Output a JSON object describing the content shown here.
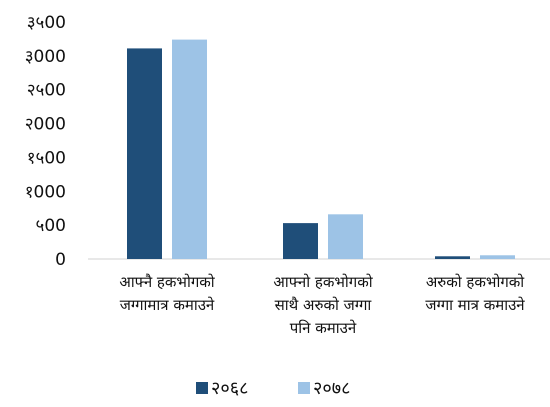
{
  "chart_data": {
    "type": "bar",
    "categories": [
      [
        "आफ्नै हकभोगको",
        "जग्गामात्र कमाउने"
      ],
      [
        "आफ्नो हकभोगको",
        "साथै अरुको जग्गा",
        "पनि कमाउने"
      ],
      [
        "अरुको हकभोगको",
        "जग्गा मात्र कमाउने"
      ]
    ],
    "series": [
      {
        "name": "२०६८",
        "values": [
          3110,
          530,
          40
        ],
        "color": "#1f4e79"
      },
      {
        "name": "२०७८",
        "values": [
          3240,
          660,
          55
        ],
        "color": "#9dc3e6"
      }
    ],
    "ylim": [
      0,
      3500
    ],
    "yticks": [
      {
        "value": 0,
        "label": "0"
      },
      {
        "value": 500,
        "label": "५00"
      },
      {
        "value": 1000,
        "label": "१000"
      },
      {
        "value": 1500,
        "label": "१५00"
      },
      {
        "value": 2000,
        "label": "२000"
      },
      {
        "value": 2500,
        "label": "२५00"
      },
      {
        "value": 3000,
        "label": "३000"
      },
      {
        "value": 3500,
        "label": "३५00"
      }
    ],
    "grid": false,
    "legend_position": "bottom",
    "title": "",
    "xlabel": "",
    "ylabel": ""
  }
}
